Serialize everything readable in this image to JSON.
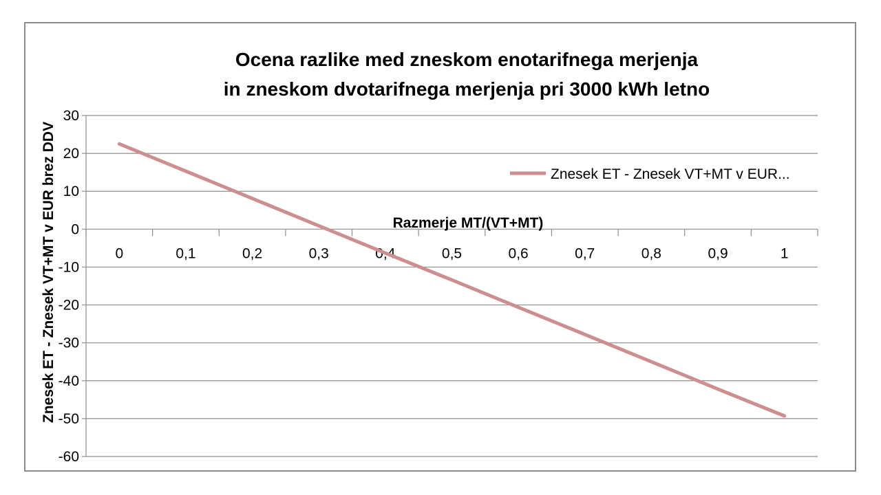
{
  "chart_data": {
    "type": "line",
    "title": [
      "Ocena razlike med zneskom enotarifnega merjenja",
      "in zneskom dvotarifnega merjenja pri 3000 kWh letno"
    ],
    "xlabel": "Razmerje MT/(VT+MT)",
    "ylabel": "Znesek ET - Znesek VT+MT v EUR brez DDV",
    "categories": [
      "0",
      "0,1",
      "0,2",
      "0,3",
      "0,4",
      "0,5",
      "0,6",
      "0,7",
      "0,8",
      "0,9",
      "1"
    ],
    "x": [
      0,
      0.1,
      0.2,
      0.3,
      0.4,
      0.5,
      0.6,
      0.7,
      0.8,
      0.9,
      1
    ],
    "y_ticks": [
      "30",
      "20",
      "10",
      "0",
      "-10",
      "-20",
      "-30",
      "-40",
      "-50",
      "-60"
    ],
    "ylim": [
      -60,
      30
    ],
    "grid": true,
    "legend_position": "right",
    "series": [
      {
        "name": "Znesek ET - Znesek VT+MT v EUR...",
        "color": "#cc8e8e",
        "values": [
          22.5,
          15.3,
          8.1,
          0.9,
          -6.3,
          -13.4,
          -20.6,
          -27.8,
          -35.0,
          -42.2,
          -49.3
        ]
      }
    ]
  }
}
